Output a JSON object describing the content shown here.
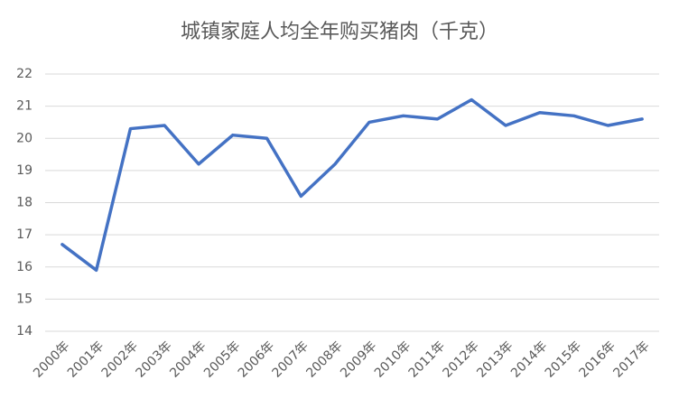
{
  "chart_data": {
    "type": "line",
    "title": "城镇家庭人均全年购买猪肉（千克）",
    "categories": [
      "2000年",
      "2001年",
      "2002年",
      "2003年",
      "2004年",
      "2005年",
      "2006年",
      "2007年",
      "2008年",
      "2009年",
      "2010年",
      "2011年",
      "2012年",
      "2013年",
      "2014年",
      "2015年",
      "2016年",
      "2017年"
    ],
    "series": [
      {
        "color": "#4472c4",
        "values": [
          16.7,
          15.9,
          20.3,
          20.4,
          19.2,
          20.1,
          20.0,
          18.2,
          19.2,
          20.5,
          20.7,
          20.6,
          21.2,
          20.4,
          20.8,
          20.7,
          20.4,
          20.6
        ]
      }
    ],
    "ylim": [
      14,
      22
    ],
    "yticks": [
      14,
      15,
      16,
      17,
      18,
      19,
      20,
      21,
      22
    ],
    "grid": true
  }
}
